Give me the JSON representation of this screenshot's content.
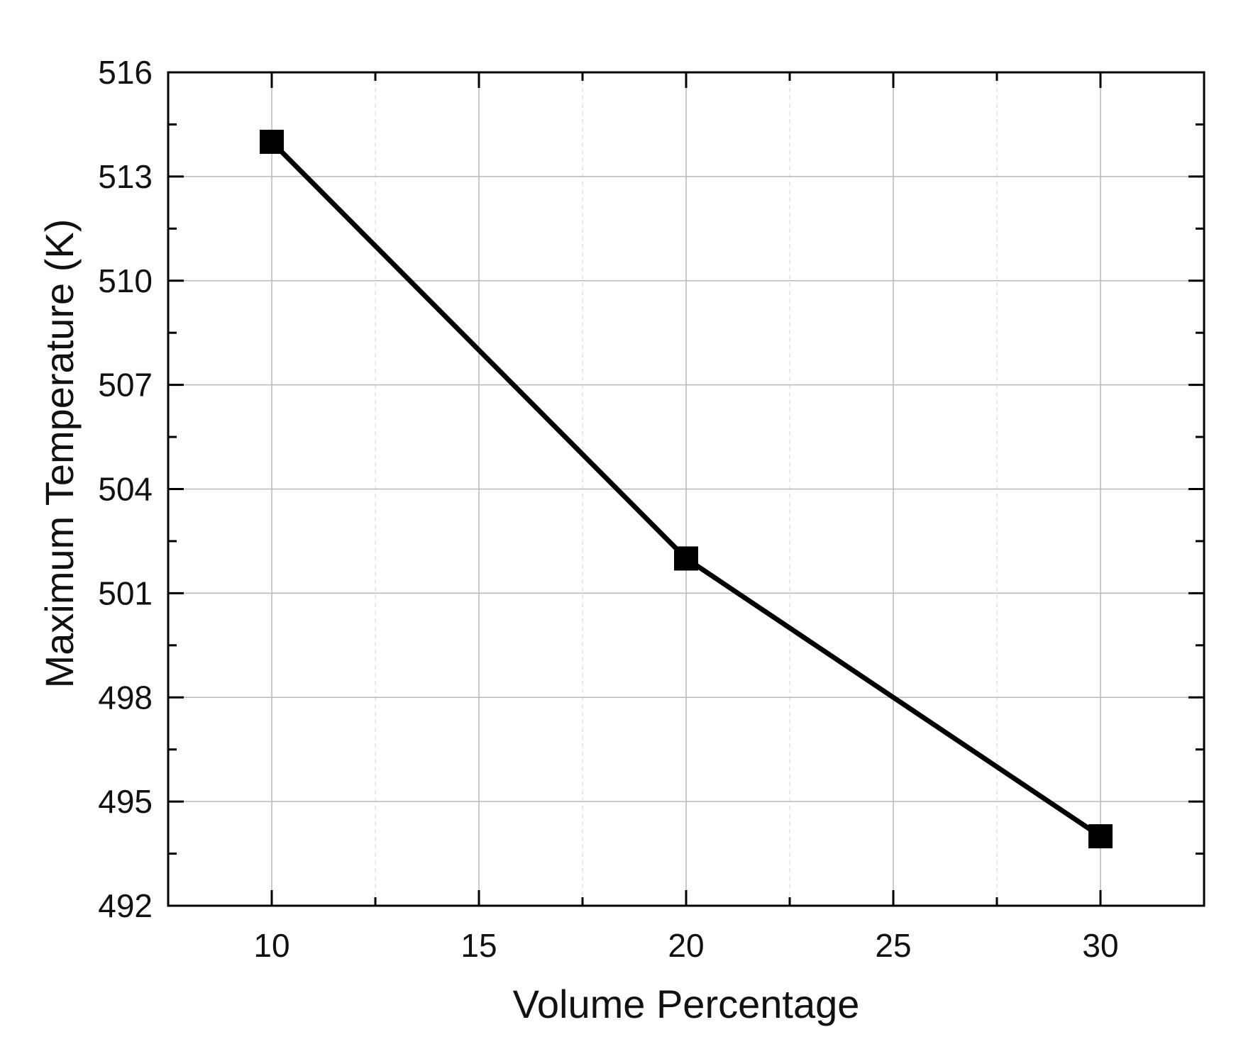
{
  "chart_data": {
    "type": "line",
    "title": "",
    "xlabel": "Volume Percentage",
    "ylabel": "Maximum Temperature (K)",
    "xlim": [
      7.5,
      32.5
    ],
    "ylim": [
      492,
      516
    ],
    "x_ticks": [
      10,
      15,
      20,
      25,
      30
    ],
    "y_ticks": [
      492,
      495,
      498,
      501,
      504,
      507,
      510,
      513,
      516
    ],
    "x_minor_ticks": [
      7.5,
      12.5,
      17.5,
      22.5,
      27.5,
      32.5
    ],
    "y_minor_ticks": [
      493.5,
      496.5,
      499.5,
      502.5,
      505.5,
      508.5,
      511.5,
      514.5
    ],
    "grid": true,
    "legend": "none",
    "series": [
      {
        "x": [
          10,
          20,
          30
        ],
        "values": [
          514,
          502,
          494
        ],
        "marker": "square",
        "color": "#000000"
      }
    ]
  }
}
